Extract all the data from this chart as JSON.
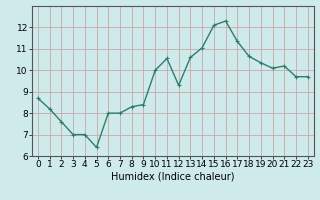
{
  "x": [
    0,
    1,
    2,
    3,
    4,
    5,
    6,
    7,
    8,
    9,
    10,
    11,
    12,
    13,
    14,
    15,
    16,
    17,
    18,
    19,
    20,
    21,
    22,
    23
  ],
  "y": [
    8.7,
    8.2,
    7.6,
    7.0,
    7.0,
    6.4,
    8.0,
    8.0,
    8.3,
    8.4,
    10.0,
    10.55,
    9.3,
    10.6,
    11.05,
    12.1,
    12.3,
    11.35,
    10.65,
    10.35,
    10.1,
    10.2,
    9.7,
    9.7
  ],
  "xlabel": "Humidex (Indice chaleur)",
  "line_color": "#2e7d6e",
  "marker": "+",
  "marker_size": 3,
  "bg_color": "#ceeaea",
  "grid_color": "#c8a8a8",
  "xlim": [
    -0.5,
    23.5
  ],
  "ylim": [
    6,
    13
  ],
  "yticks": [
    6,
    7,
    8,
    9,
    10,
    11,
    12
  ],
  "xticks": [
    0,
    1,
    2,
    3,
    4,
    5,
    6,
    7,
    8,
    9,
    10,
    11,
    12,
    13,
    14,
    15,
    16,
    17,
    18,
    19,
    20,
    21,
    22,
    23
  ],
  "xtick_labels": [
    "0",
    "1",
    "2",
    "3",
    "4",
    "5",
    "6",
    "7",
    "8",
    "9",
    "10",
    "11",
    "12",
    "13",
    "14",
    "15",
    "16",
    "17",
    "18",
    "19",
    "20",
    "21",
    "22",
    "23"
  ],
  "linewidth": 1.0,
  "tick_fontsize": 6.5,
  "xlabel_fontsize": 7.0
}
